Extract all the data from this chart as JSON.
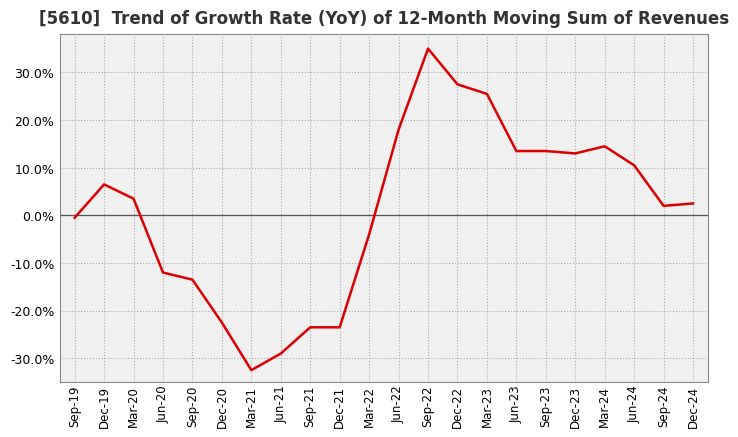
{
  "title": "[5610]  Trend of Growth Rate (YoY) of 12-Month Moving Sum of Revenues",
  "title_fontsize": 12,
  "line_color": "#dd0000",
  "background_color": "#ffffff",
  "plot_bg_color": "#f0f0f0",
  "grid_color": "#aaaaaa",
  "ylim": [
    -35,
    38
  ],
  "yticks": [
    -30,
    -20,
    -10,
    0,
    10,
    20,
    30
  ],
  "x_labels": [
    "Sep-19",
    "Dec-19",
    "Mar-20",
    "Jun-20",
    "Sep-20",
    "Dec-20",
    "Mar-21",
    "Jun-21",
    "Sep-21",
    "Dec-21",
    "Mar-22",
    "Jun-22",
    "Sep-22",
    "Dec-22",
    "Mar-23",
    "Jun-23",
    "Sep-23",
    "Dec-23",
    "Mar-24",
    "Jun-24",
    "Sep-24",
    "Dec-24"
  ],
  "values": [
    -0.5,
    6.5,
    3.5,
    -12.0,
    -13.5,
    -22.5,
    -32.5,
    -29.0,
    -23.5,
    -23.5,
    -4.0,
    18.0,
    35.0,
    27.5,
    25.5,
    13.5,
    13.5,
    13.0,
    14.5,
    10.5,
    2.0,
    2.5
  ]
}
